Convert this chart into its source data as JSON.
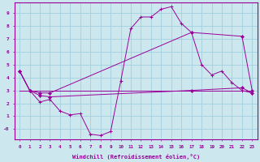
{
  "xlabel": "Windchill (Refroidissement éolien,°C)",
  "bg_color": "#cce8ee",
  "grid_color": "#99ccdd",
  "line_color": "#990099",
  "xlim": [
    -0.5,
    23.5
  ],
  "ylim": [
    -0.8,
    9.8
  ],
  "xticks": [
    0,
    1,
    2,
    3,
    4,
    5,
    6,
    7,
    8,
    9,
    10,
    11,
    12,
    13,
    14,
    15,
    16,
    17,
    18,
    19,
    20,
    21,
    22,
    23
  ],
  "yticks": [
    0,
    1,
    2,
    3,
    4,
    5,
    6,
    7,
    8,
    9
  ],
  "ytick_labels": [
    "-0",
    "1",
    "2",
    "3",
    "4",
    "5",
    "6",
    "7",
    "8",
    "9"
  ],
  "line1_x": [
    0,
    1,
    2,
    3,
    4,
    5,
    6,
    7,
    8,
    9,
    10,
    11,
    12,
    13,
    14,
    15,
    16,
    17,
    18,
    19,
    20,
    21,
    22,
    23
  ],
  "line1_y": [
    4.5,
    3.0,
    2.1,
    2.3,
    1.4,
    1.1,
    1.2,
    -0.4,
    -0.5,
    -0.2,
    3.7,
    7.8,
    8.7,
    8.7,
    9.3,
    9.5,
    8.2,
    7.5,
    5.0,
    4.2,
    4.5,
    3.6,
    3.0,
    2.8
  ],
  "line2_x": [
    0,
    1,
    2,
    3,
    17,
    22,
    23
  ],
  "line2_y": [
    4.5,
    3.0,
    2.8,
    2.8,
    7.5,
    7.2,
    3.0
  ],
  "line3_x": [
    0,
    1,
    2,
    3,
    17,
    22,
    23
  ],
  "line3_y": [
    4.5,
    3.0,
    2.6,
    2.5,
    3.0,
    3.2,
    2.8
  ],
  "line4_x": [
    0,
    23
  ],
  "line4_y": [
    3.0,
    3.0
  ]
}
